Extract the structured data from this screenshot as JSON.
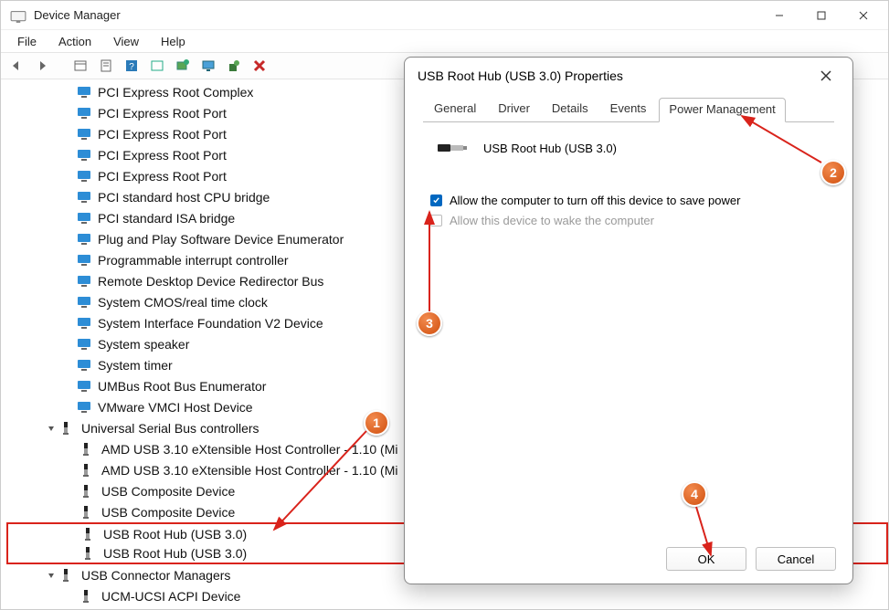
{
  "window": {
    "title": "Device Manager",
    "menus": [
      "File",
      "Action",
      "View",
      "Help"
    ]
  },
  "tree": {
    "sys_items": [
      "PCI Express Root Complex",
      "PCI Express Root Port",
      "PCI Express Root Port",
      "PCI Express Root Port",
      "PCI Express Root Port",
      "PCI standard host CPU bridge",
      "PCI standard ISA bridge",
      "Plug and Play Software Device Enumerator",
      "Programmable interrupt controller",
      "Remote Desktop Device Redirector Bus",
      "System CMOS/real time clock",
      "System Interface Foundation V2 Device",
      "System speaker",
      "System timer",
      "UMBus Root Bus Enumerator",
      "VMware VMCI Host Device"
    ],
    "usb_controllers_label": "Universal Serial Bus controllers",
    "usb_items": [
      "AMD USB 3.10 eXtensible Host Controller - 1.10 (Mi",
      "AMD USB 3.10 eXtensible Host Controller - 1.10 (Mi",
      "USB Composite Device",
      "USB Composite Device",
      "USB Root Hub (USB 3.0)",
      "USB Root Hub (USB 3.0)"
    ],
    "usb_connector_label": "USB Connector Managers",
    "usb_connector_items": [
      "UCM-UCSI ACPI Device"
    ]
  },
  "dialog": {
    "title": "USB Root Hub (USB 3.0) Properties",
    "tabs": [
      "General",
      "Driver",
      "Details",
      "Events",
      "Power Management"
    ],
    "active_tab": "Power Management",
    "device_name": "USB Root Hub (USB 3.0)",
    "check1": "Allow the computer to turn off this device to save power",
    "check2": "Allow this device to wake the computer",
    "ok": "OK",
    "cancel": "Cancel"
  },
  "annotations": {
    "badges": [
      "1",
      "2",
      "3",
      "4"
    ],
    "color": "#d9231b",
    "badge_fill": "#d95b17"
  }
}
